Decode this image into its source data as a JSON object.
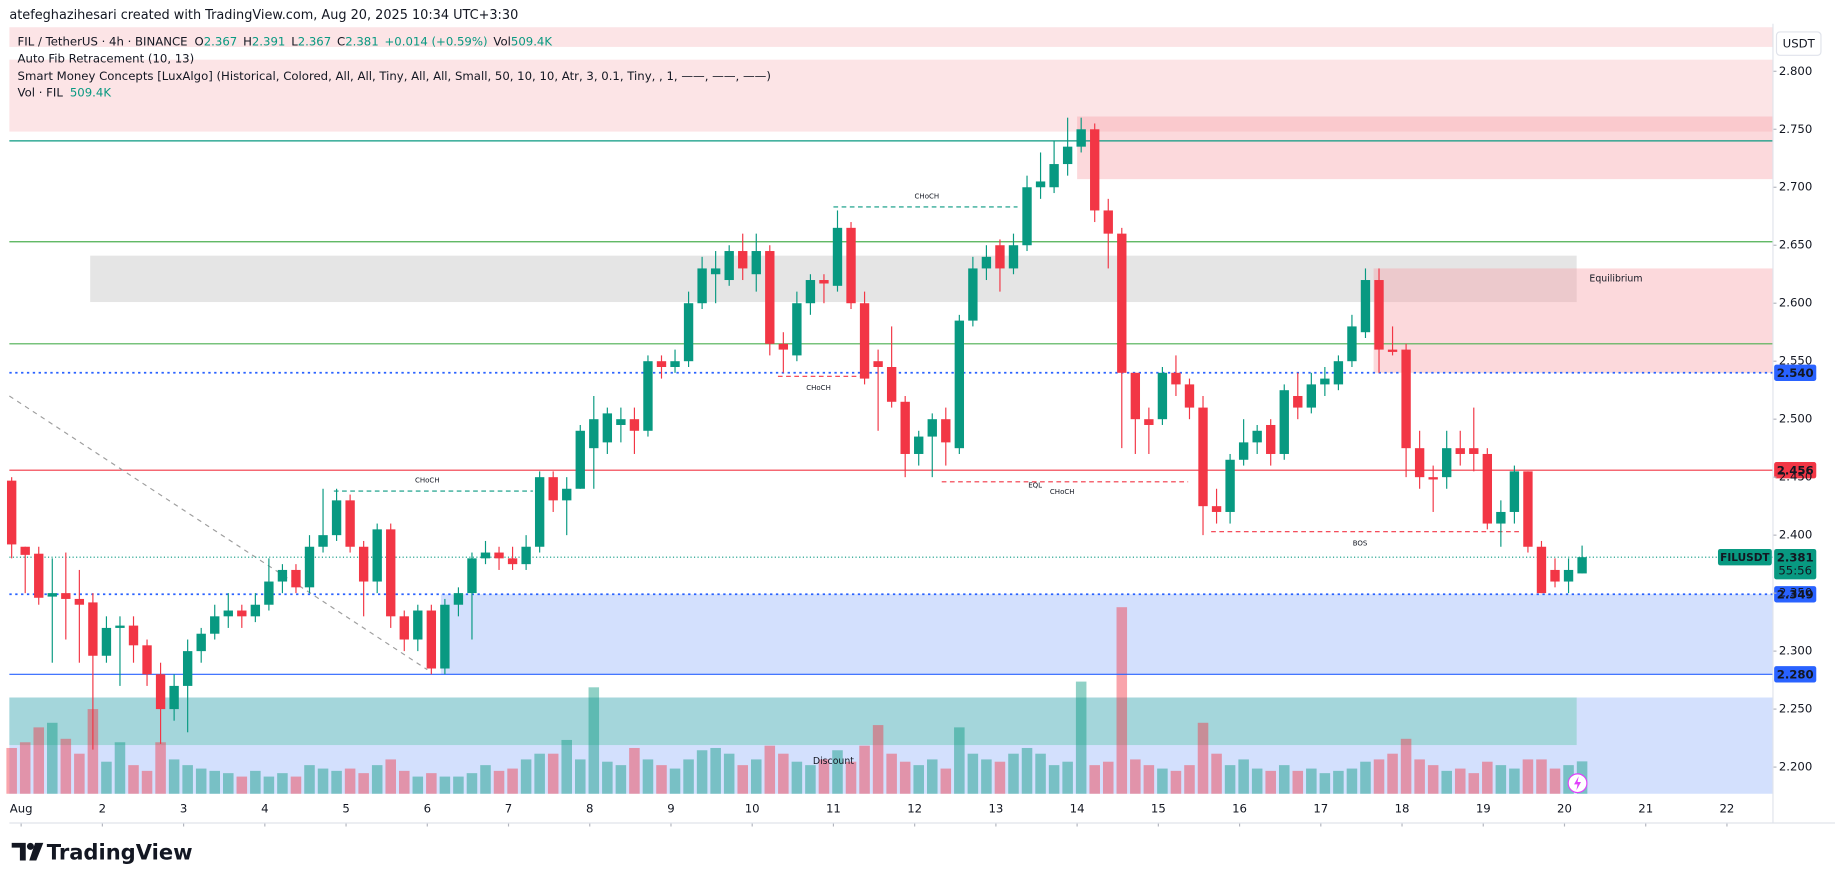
{
  "chart_data": {
    "type": "candlestick",
    "credit": "atefeghazihesari created with TradingView.com, Aug 20, 2025 10:34 UTC+3:30",
    "symbol": "FIL / TetherUS · 4h · BINANCE",
    "o_label": "O",
    "h_label": "H",
    "l_label": "L",
    "c_label": "C",
    "change": "+0.014 (+0.59%)",
    "vol_label": "Vol",
    "indicators": [
      "Auto Fib Retracement (10, 13)",
      "Smart Money Concepts [LuxAlgo] (Historical, Colored, All, All, Tiny, All, All, Small, 50, 10, 10, Atr, 3, 0.1, Tiny, , 1, ——, ——, ——)"
    ],
    "volume_title": "Vol · FIL",
    "currency": "USDT",
    "brand": "TradingView",
    "last_price_label": "FILUSDT",
    "countdown": "55:56",
    "up_color": "#089981",
    "down_color": "#f23645",
    "open": [
      2.447,
      2.39,
      2.384,
      2.347,
      2.35,
      2.345,
      2.342,
      2.296,
      2.32,
      2.322,
      2.305,
      2.28,
      2.25,
      2.27,
      2.3,
      2.315,
      2.33,
      2.335,
      2.33,
      2.34,
      2.36,
      2.37,
      2.355,
      2.39,
      2.4,
      2.43,
      2.39,
      2.36,
      2.405,
      2.33,
      2.31,
      2.335,
      2.285,
      2.34,
      2.35,
      2.38,
      2.385,
      2.38,
      2.375,
      2.39,
      2.45,
      2.43,
      2.44,
      2.475,
      2.48,
      2.495,
      2.5,
      2.49,
      2.55,
      2.545,
      2.55,
      2.6,
      2.625,
      2.62,
      2.645,
      2.625,
      2.645,
      2.565,
      2.555,
      2.6,
      2.62,
      2.615,
      2.665,
      2.6,
      2.55,
      2.545,
      2.515,
      2.47,
      2.485,
      2.5,
      2.475,
      2.585,
      2.63,
      2.65,
      2.63,
      2.65,
      2.7,
      2.7,
      2.72,
      2.735,
      2.75,
      2.68,
      2.66,
      2.54,
      2.5,
      2.5,
      2.54,
      2.53,
      2.51,
      2.425,
      2.42,
      2.465,
      2.48,
      2.495,
      2.47,
      2.52,
      2.51,
      2.53,
      2.53,
      2.55,
      2.575,
      2.62,
      2.56,
      2.56,
      2.475,
      2.45,
      2.45,
      2.475,
      2.475,
      2.47,
      2.41,
      2.42,
      2.455,
      2.39,
      2.37,
      2.36,
      2.367
    ],
    "high": [
      2.45,
      2.39,
      2.39,
      2.38,
      2.385,
      2.37,
      2.35,
      2.33,
      2.33,
      2.33,
      2.31,
      2.29,
      2.28,
      2.31,
      2.32,
      2.34,
      2.35,
      2.34,
      2.35,
      2.38,
      2.375,
      2.375,
      2.4,
      2.44,
      2.44,
      2.435,
      2.395,
      2.41,
      2.41,
      2.335,
      2.34,
      2.34,
      2.345,
      2.355,
      2.385,
      2.395,
      2.39,
      2.39,
      2.4,
      2.455,
      2.455,
      2.45,
      2.495,
      2.52,
      2.51,
      2.51,
      2.51,
      2.555,
      2.555,
      2.56,
      2.61,
      2.64,
      2.645,
      2.65,
      2.66,
      2.66,
      2.65,
      2.575,
      2.61,
      2.625,
      2.625,
      2.68,
      2.67,
      2.61,
      2.56,
      2.58,
      2.52,
      2.49,
      2.505,
      2.51,
      2.59,
      2.64,
      2.65,
      2.655,
      2.66,
      2.71,
      2.73,
      2.74,
      2.76,
      2.76,
      2.755,
      2.69,
      2.665,
      2.54,
      2.51,
      2.545,
      2.555,
      2.535,
      2.52,
      2.44,
      2.47,
      2.5,
      2.495,
      2.5,
      2.53,
      2.54,
      2.54,
      2.545,
      2.555,
      2.59,
      2.63,
      2.63,
      2.58,
      2.565,
      2.49,
      2.46,
      2.49,
      2.49,
      2.51,
      2.475,
      2.43,
      2.46,
      2.455,
      2.395,
      2.38,
      2.38,
      2.391
    ],
    "low": [
      2.38,
      2.35,
      2.34,
      2.29,
      2.31,
      2.29,
      2.215,
      2.29,
      2.27,
      2.29,
      2.27,
      2.22,
      2.24,
      2.23,
      2.29,
      2.31,
      2.32,
      2.32,
      2.325,
      2.335,
      2.35,
      2.35,
      2.35,
      2.385,
      2.395,
      2.385,
      2.33,
      2.35,
      2.32,
      2.3,
      2.3,
      2.28,
      2.28,
      2.33,
      2.31,
      2.375,
      2.37,
      2.37,
      2.37,
      2.385,
      2.42,
      2.4,
      2.44,
      2.44,
      2.47,
      2.48,
      2.47,
      2.485,
      2.535,
      2.54,
      2.545,
      2.595,
      2.6,
      2.615,
      2.62,
      2.61,
      2.555,
      2.54,
      2.55,
      2.59,
      2.6,
      2.61,
      2.595,
      2.53,
      2.49,
      2.51,
      2.45,
      2.46,
      2.45,
      2.46,
      2.47,
      2.58,
      2.62,
      2.61,
      2.625,
      2.645,
      2.69,
      2.695,
      2.71,
      2.73,
      2.67,
      2.63,
      2.475,
      2.47,
      2.47,
      2.495,
      2.52,
      2.5,
      2.4,
      2.41,
      2.41,
      2.46,
      2.47,
      2.46,
      2.465,
      2.5,
      2.505,
      2.52,
      2.525,
      2.545,
      2.57,
      2.54,
      2.555,
      2.45,
      2.44,
      2.42,
      2.44,
      2.46,
      2.455,
      2.405,
      2.39,
      2.41,
      2.385,
      2.35,
      2.355,
      2.35,
      2.367
    ],
    "close": [
      2.392,
      2.383,
      2.346,
      2.35,
      2.345,
      2.34,
      2.296,
      2.32,
      2.322,
      2.305,
      2.28,
      2.25,
      2.27,
      2.3,
      2.315,
      2.33,
      2.335,
      2.33,
      2.34,
      2.36,
      2.37,
      2.355,
      2.39,
      2.4,
      2.43,
      2.39,
      2.36,
      2.405,
      2.33,
      2.31,
      2.335,
      2.285,
      2.34,
      2.35,
      2.38,
      2.385,
      2.38,
      2.375,
      2.39,
      2.45,
      2.43,
      2.44,
      2.49,
      2.5,
      2.505,
      2.5,
      2.49,
      2.55,
      2.545,
      2.55,
      2.6,
      2.63,
      2.63,
      2.645,
      2.63,
      2.645,
      2.565,
      2.56,
      2.6,
      2.62,
      2.617,
      2.665,
      2.6,
      2.535,
      2.545,
      2.515,
      2.47,
      2.485,
      2.5,
      2.48,
      2.585,
      2.63,
      2.64,
      2.63,
      2.65,
      2.7,
      2.705,
      2.72,
      2.735,
      2.75,
      2.68,
      2.66,
      2.54,
      2.5,
      2.495,
      2.54,
      2.53,
      2.51,
      2.425,
      2.42,
      2.465,
      2.48,
      2.49,
      2.47,
      2.525,
      2.51,
      2.53,
      2.535,
      2.55,
      2.58,
      2.62,
      2.56,
      2.558,
      2.475,
      2.45,
      2.448,
      2.475,
      2.47,
      2.47,
      2.41,
      2.42,
      2.455,
      2.39,
      2.35,
      2.36,
      2.37,
      2.381
    ],
    "volume": [
      720000,
      810000,
      1044000,
      1116000,
      864000,
      630000,
      1332000,
      504000,
      810000,
      450000,
      360000,
      810000,
      540000,
      450000,
      396000,
      360000,
      324000,
      270000,
      360000,
      270000,
      324000,
      270000,
      450000,
      396000,
      360000,
      396000,
      324000,
      450000,
      540000,
      360000,
      270000,
      324000,
      270000,
      270000,
      324000,
      450000,
      360000,
      396000,
      540000,
      630000,
      630000,
      846000,
      540000,
      1674000,
      504000,
      450000,
      720000,
      540000,
      450000,
      396000,
      540000,
      684000,
      720000,
      630000,
      450000,
      540000,
      756000,
      630000,
      504000,
      450000,
      540000,
      684000,
      504000,
      756000,
      1080000,
      630000,
      504000,
      450000,
      540000,
      396000,
      1044000,
      630000,
      540000,
      504000,
      630000,
      720000,
      630000,
      450000,
      504000,
      1764000,
      450000,
      504000,
      2934000,
      540000,
      450000,
      396000,
      360000,
      450000,
      1116000,
      630000,
      450000,
      540000,
      396000,
      360000,
      450000,
      360000,
      396000,
      324000,
      360000,
      396000,
      504000,
      540000,
      630000,
      864000,
      540000,
      450000,
      360000,
      396000,
      324000,
      504000,
      450000,
      396000,
      540000,
      540000,
      396000,
      450000,
      509400
    ],
    "volume_value_labels": {
      "116": "509.4K"
    },
    "vlim": [
      0,
      3000000
    ],
    "xlim": [
      -0.17,
      130.1
    ],
    "xticks": [
      {
        "value": 0.7,
        "label": "Aug"
      },
      {
        "value": 6.7,
        "label": "2"
      },
      {
        "value": 12.7,
        "label": "3"
      },
      {
        "value": 18.7,
        "label": "4"
      },
      {
        "value": 24.7,
        "label": "5"
      },
      {
        "value": 30.7,
        "label": "6"
      },
      {
        "value": 36.7,
        "label": "7"
      },
      {
        "value": 42.7,
        "label": "8"
      },
      {
        "value": 48.7,
        "label": "9"
      },
      {
        "value": 54.7,
        "label": "10"
      },
      {
        "value": 60.7,
        "label": "11"
      },
      {
        "value": 66.7,
        "label": "12"
      },
      {
        "value": 72.7,
        "label": "13"
      },
      {
        "value": 78.7,
        "label": "14"
      },
      {
        "value": 84.7,
        "label": "15"
      },
      {
        "value": 90.7,
        "label": "16"
      },
      {
        "value": 96.7,
        "label": "17"
      },
      {
        "value": 102.7,
        "label": "18"
      },
      {
        "value": 108.7,
        "label": "19"
      },
      {
        "value": 114.7,
        "label": "20"
      },
      {
        "value": 120.7,
        "label": "21"
      },
      {
        "value": 126.7,
        "label": "22"
      }
    ],
    "ylim": [
      2.177,
      2.838
    ],
    "yticks": [
      {
        "value": 2.2,
        "label": "2.200"
      },
      {
        "value": 2.25,
        "label": "2.250"
      },
      {
        "value": 2.3,
        "label": "2.300"
      },
      {
        "value": 2.35,
        "label": "2.350"
      },
      {
        "value": 2.4,
        "label": "2.400"
      },
      {
        "value": 2.45,
        "label": "2.450"
      },
      {
        "value": 2.5,
        "label": "2.500"
      },
      {
        "value": 2.55,
        "label": "2.550"
      },
      {
        "value": 2.6,
        "label": "2.600"
      },
      {
        "value": 2.65,
        "label": "2.650"
      },
      {
        "value": 2.7,
        "label": "2.700"
      },
      {
        "value": 2.75,
        "label": "2.750"
      },
      {
        "value": 2.8,
        "label": "2.800"
      }
    ],
    "grid": false,
    "zones": [
      {
        "from": -0.17,
        "to": 130.1,
        "top": 2.838,
        "bottom": 2.821,
        "color": "#f8bbc0"
      },
      {
        "from": -0.17,
        "to": 130.1,
        "top": 2.81,
        "bottom": 2.748,
        "color": "#f8bbc0"
      },
      {
        "from": 78.7,
        "to": 130.1,
        "top": 2.761,
        "bottom": 2.707,
        "color": "#f7a1a8"
      },
      {
        "from": 5.8,
        "to": 115.6,
        "top": 2.641,
        "bottom": 2.601,
        "color": "#bdbdbd"
      },
      {
        "from": 100.6,
        "to": 130.1,
        "top": 2.63,
        "bottom": 2.54,
        "color": "#f7a1a8"
      },
      {
        "from": 31.7,
        "to": 130.1,
        "top": 2.349,
        "bottom": 2.28,
        "color": "#90b2fb"
      },
      {
        "from": -0.17,
        "to": 130.1,
        "top": 2.26,
        "bottom": 2.177,
        "color": "#90b2fb"
      },
      {
        "from": -0.17,
        "to": 115.6,
        "top": 2.26,
        "bottom": 2.219,
        "color": "#5fc7a8"
      }
    ],
    "levels": [
      {
        "value": 2.74,
        "color": "#089981",
        "style": "solid"
      },
      {
        "value": 2.653,
        "color": "#4caf50",
        "style": "solid"
      },
      {
        "value": 2.565,
        "color": "#4caf50",
        "style": "solid"
      },
      {
        "value": 2.54,
        "label": "2.540",
        "color": "#2962ff",
        "style": "dotted"
      },
      {
        "value": 2.456,
        "color": "#f23645",
        "style": "solid"
      },
      {
        "value": 2.349,
        "color": "#2962ff",
        "style": "dotted"
      },
      {
        "value": 2.28,
        "label": "2.280",
        "color": "#2962ff",
        "style": "solid"
      }
    ],
    "structures": [
      {
        "from": 23.8,
        "to": 38.5,
        "price": 2.438,
        "color": "#089981"
      },
      {
        "from": 60.7,
        "to": 74.3,
        "price": 2.683,
        "color": "#089981"
      },
      {
        "from": 56.6,
        "to": 63.1,
        "price": 2.537,
        "color": "#f23645"
      },
      {
        "from": 68.7,
        "to": 86.9,
        "price": 2.446,
        "color": "#f23645"
      },
      {
        "from": 88.6,
        "to": 111.5,
        "price": 2.403,
        "color": "#f23645"
      }
    ],
    "trendline": {
      "from": -0.17,
      "to": 30.7,
      "start": 2.52,
      "end": 2.284
    },
    "annotations": [
      {
        "text": "CHoCH",
        "x": 30.7,
        "y": 2.447,
        "color": "#089981"
      },
      {
        "text": "CHoCH",
        "x": 67.6,
        "y": 2.692,
        "color": "#089981"
      },
      {
        "text": "CHoCH",
        "x": 59.6,
        "y": 2.527,
        "color": "#f23645"
      },
      {
        "text": "CHoCH",
        "x": 77.6,
        "y": 2.437,
        "color": "#f23645"
      },
      {
        "text": "EQL",
        "x": 75.6,
        "y": 2.443,
        "color": "#089981"
      },
      {
        "text": "BOS",
        "x": 99.6,
        "y": 2.393,
        "color": "#f23645"
      },
      {
        "text": "Equilibrium",
        "x": 118.5,
        "y": 2.621,
        "color": "#9e9e9e"
      },
      {
        "text": "Discount",
        "x": 60.7,
        "y": 2.205,
        "color": "#089981"
      }
    ]
  }
}
